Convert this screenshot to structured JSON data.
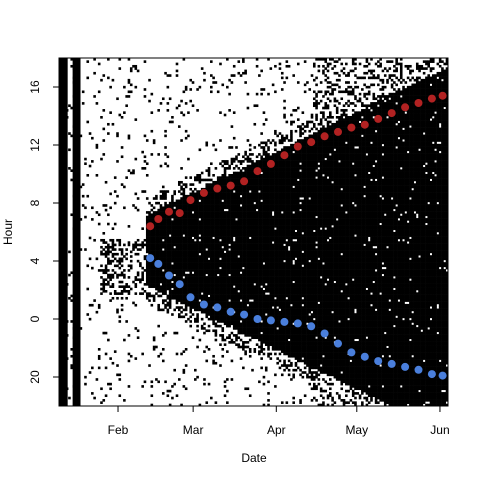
{
  "chart_data": {
    "type": "scatter",
    "title": "",
    "xlabel": "Date",
    "ylabel": "Hour",
    "x_ticks": [
      "Feb",
      "Mar",
      "Apr",
      "May",
      "Jun"
    ],
    "y_ticks": [
      "20",
      "0",
      "4",
      "8",
      "12",
      "16"
    ],
    "x_range": [
      "2014-01-10",
      "2014-06-04"
    ],
    "y_range_shifted_hours": [
      -6,
      18
    ],
    "background": "actogram raster (black = activity)",
    "series": [
      {
        "marker_color": "#b22222",
        "x": [
          "2014-02-13",
          "2014-02-16",
          "2014-02-20",
          "2014-02-24",
          "2014-02-28",
          "2014-03-05",
          "2014-03-10",
          "2014-03-15",
          "2014-03-20",
          "2014-03-25",
          "2014-03-30",
          "2014-04-04",
          "2014-04-09",
          "2014-04-14",
          "2014-04-19",
          "2014-04-24",
          "2014-04-29",
          "2014-05-04",
          "2014-05-09",
          "2014-05-14",
          "2014-05-19",
          "2014-05-24",
          "2014-05-29",
          "2014-06-02"
        ],
        "y": [
          6.4,
          6.9,
          7.4,
          7.3,
          8.2,
          8.7,
          9.0,
          9.2,
          9.5,
          10.2,
          10.7,
          11.3,
          11.9,
          12.2,
          12.6,
          12.9,
          13.2,
          13.4,
          13.8,
          14.2,
          14.6,
          14.9,
          15.2,
          15.4
        ]
      },
      {
        "marker_color": "#4a7fdc",
        "x": [
          "2014-02-13",
          "2014-02-16",
          "2014-02-20",
          "2014-02-24",
          "2014-02-28",
          "2014-03-05",
          "2014-03-10",
          "2014-03-15",
          "2014-03-20",
          "2014-03-25",
          "2014-03-30",
          "2014-04-04",
          "2014-04-09",
          "2014-04-14",
          "2014-04-19",
          "2014-04-24",
          "2014-04-29",
          "2014-05-04",
          "2014-05-09",
          "2014-05-14",
          "2014-05-19",
          "2014-05-24",
          "2014-05-29",
          "2014-06-02"
        ],
        "y": [
          4.2,
          3.8,
          3.0,
          2.4,
          1.5,
          1.0,
          0.8,
          0.5,
          0.3,
          0.0,
          -0.1,
          -0.2,
          -0.3,
          -0.5,
          -1.0,
          -1.7,
          -2.3,
          -2.6,
          -2.9,
          -3.1,
          -3.3,
          -3.5,
          -3.8,
          -3.9
        ]
      }
    ]
  }
}
